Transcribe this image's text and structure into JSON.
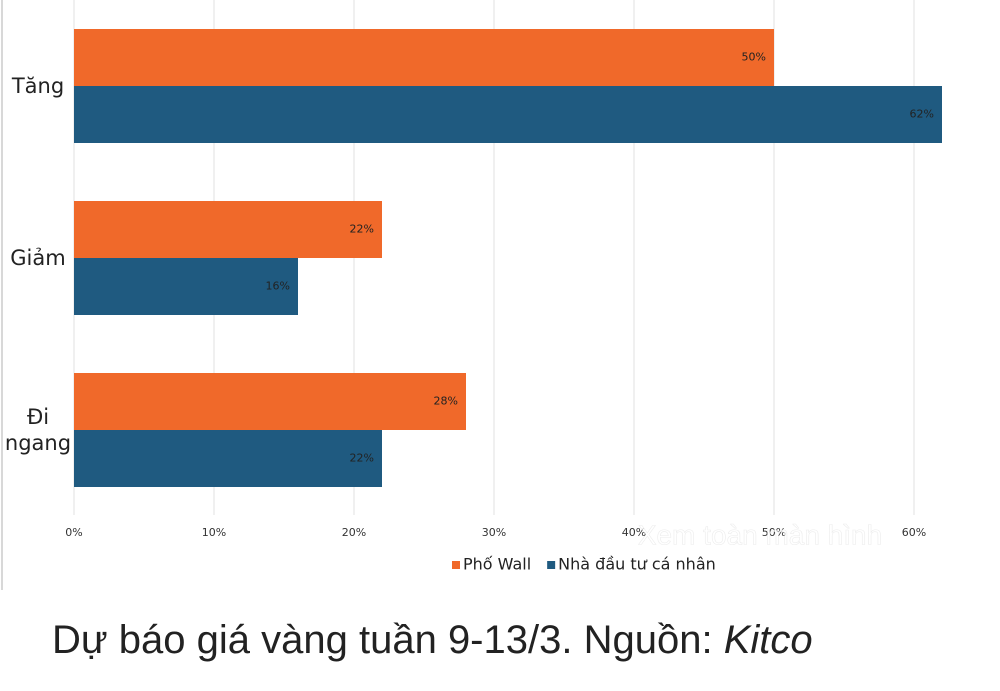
{
  "chart_data": {
    "type": "bar",
    "orientation": "horizontal",
    "categories": [
      "Tăng",
      "Giảm",
      "Đi ngang"
    ],
    "series": [
      {
        "name": "Phố Wall",
        "color": "#f0692a",
        "values": [
          50,
          22,
          28
        ],
        "value_labels": [
          "50%",
          "22%",
          "28%"
        ]
      },
      {
        "name": "Nhà đầu tư cá nhân",
        "color": "#1f5a80",
        "values": [
          62,
          16,
          22
        ],
        "value_labels": [
          "62%",
          "16%",
          "22%"
        ]
      }
    ],
    "xlim": [
      0,
      62
    ],
    "xticks": [
      {
        "value": 0,
        "label": "0%"
      },
      {
        "value": 10,
        "label": "10%"
      },
      {
        "value": 20,
        "label": "20%"
      },
      {
        "value": 30,
        "label": "30%"
      },
      {
        "value": 40,
        "label": "40%"
      },
      {
        "value": 50,
        "label": "50%"
      },
      {
        "value": 60,
        "label": "60%"
      }
    ],
    "grid": true,
    "legend": "bottom",
    "watermark": "Xem toàn màn hình"
  },
  "caption": {
    "text": "Dự báo giá vàng tuần 9-13/3. Nguồn: ",
    "source": "Kitco"
  }
}
